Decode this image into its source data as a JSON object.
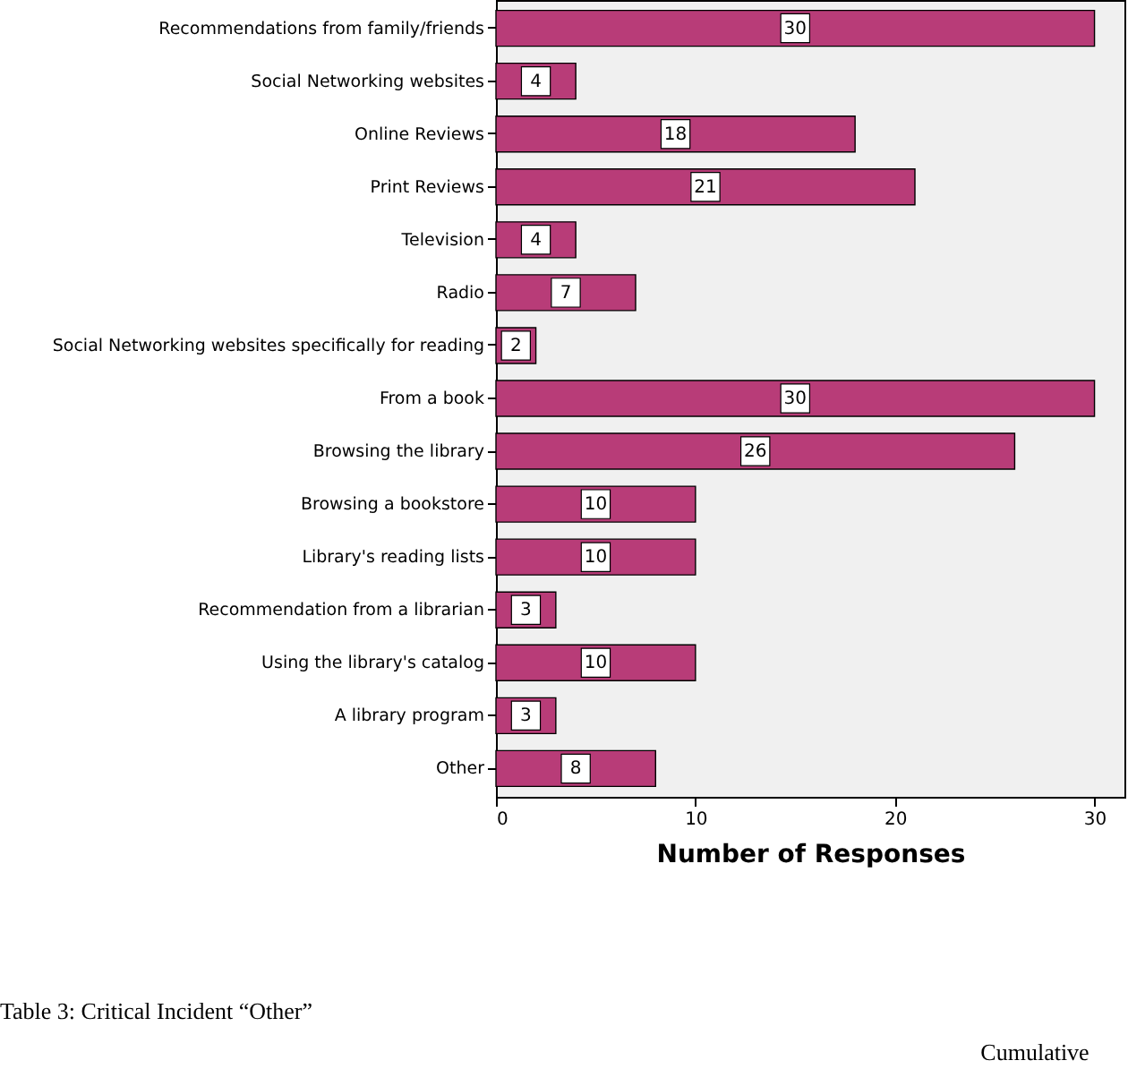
{
  "chart_data": {
    "type": "bar",
    "orientation": "horizontal",
    "xlabel": "Number of Responses",
    "categories": [
      "Recommendations from family/friends",
      "Social Networking websites",
      "Online Reviews",
      "Print Reviews",
      "Television",
      "Radio",
      "Social Networking websites specifically for reading",
      "From a book",
      "Browsing the library",
      "Browsing a bookstore",
      "Library's reading lists",
      "Recommendation from a librarian",
      "Using the library's catalog",
      "A library program",
      "Other"
    ],
    "values": [
      30,
      4,
      18,
      21,
      4,
      7,
      2,
      30,
      26,
      10,
      10,
      3,
      10,
      3,
      8
    ],
    "color": "#b83c78",
    "xlim": [
      0,
      31.5
    ],
    "xticks": [
      0,
      10,
      20,
      30
    ],
    "data_labels": true,
    "grid": false,
    "annotations": [
      "Table 3: Critical Incident “Other”",
      "Cumulative"
    ]
  }
}
